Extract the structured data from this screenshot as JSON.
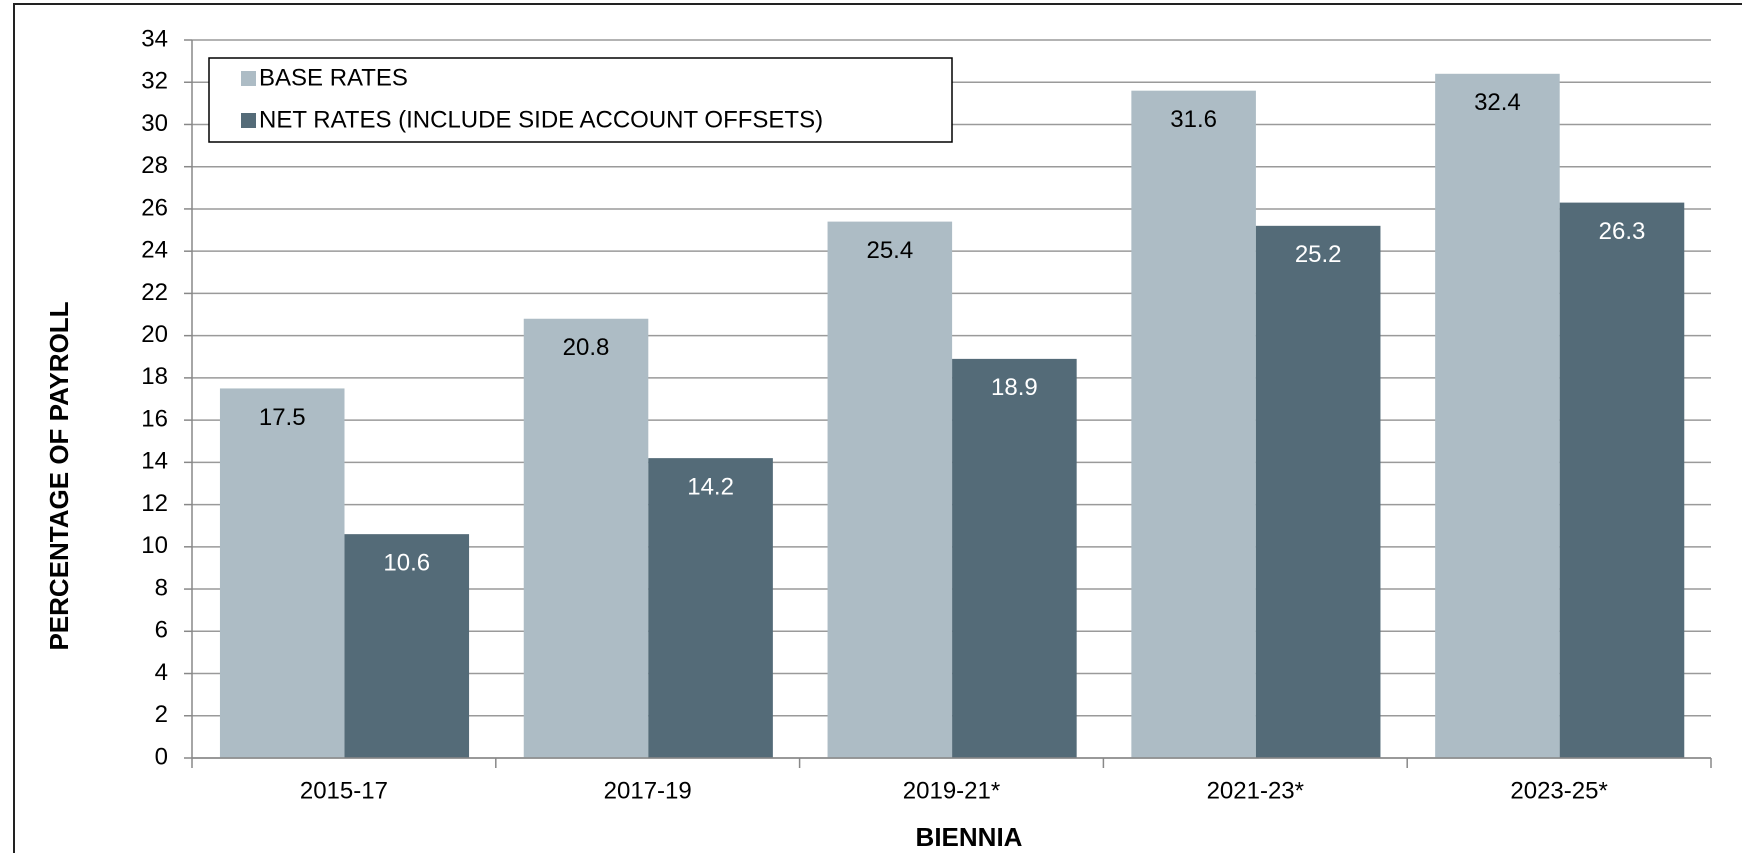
{
  "chart_data": {
    "type": "bar",
    "xlabel": "BIENNIA",
    "ylabel": "PERCENTAGE OF PAYROLL",
    "categories": [
      "2015-17",
      "2017-19",
      "2019-21*",
      "2021-23*",
      "2023-25*"
    ],
    "series": [
      {
        "name": "BASE RATES",
        "color": "#adbcc5",
        "values": [
          17.5,
          20.8,
          25.4,
          31.6,
          32.4
        ]
      },
      {
        "name": "NET RATES (INCLUDE SIDE ACCOUNT OFFSETS)",
        "color": "#546b78",
        "values": [
          10.6,
          14.2,
          18.9,
          25.2,
          26.3
        ]
      }
    ],
    "ylim": [
      0,
      34
    ],
    "yticks": [
      0,
      2,
      4,
      6,
      8,
      10,
      12,
      14,
      16,
      18,
      20,
      22,
      24,
      26,
      28,
      30,
      32,
      34
    ],
    "grid": true,
    "legend": "upper left"
  }
}
